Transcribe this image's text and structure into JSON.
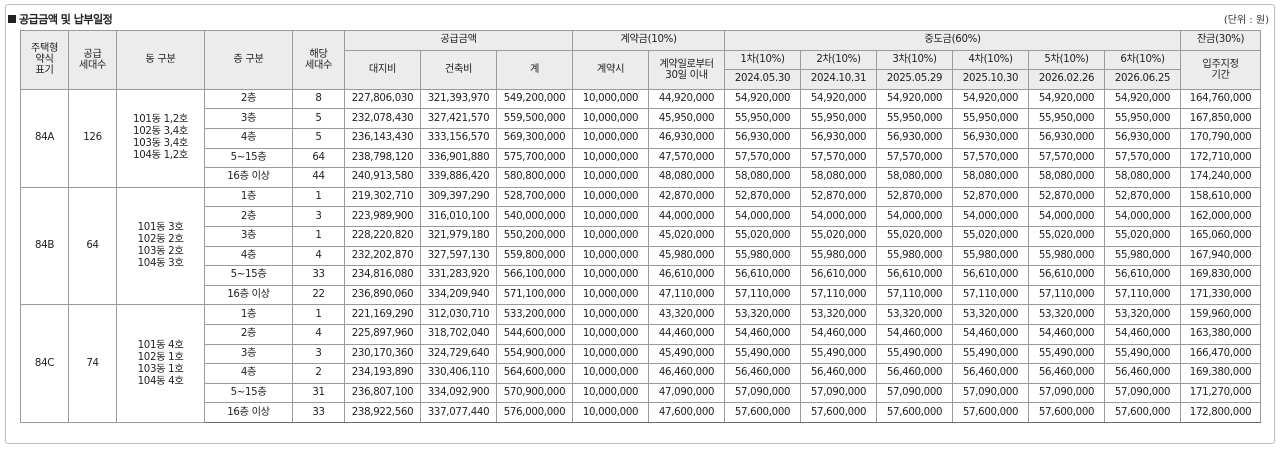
{
  "title": "공급금액 및 납부일정",
  "unit": "(단위 : 원)",
  "header": {
    "type_label": "주택형\n약식\n표기",
    "supply_units_label": "공급\n세대수",
    "dong_label": "동 구분",
    "floor_label": "층 구분",
    "units_label": "해당\n세대수",
    "supply_amount_label": "공급금액",
    "land_label": "대지비",
    "building_label": "건축비",
    "total_label": "계",
    "deposit_label": "계약금(10%)",
    "at_contract_label": "계약시",
    "within30_label": "계약일로부터\n30일 이내",
    "middle_label": "중도금(60%)",
    "balance_label": "잔금(30%)",
    "movein_label": "입주지정\n기간",
    "installments": [
      {
        "name": "1차(10%)",
        "date": "2024.05.30"
      },
      {
        "name": "2차(10%)",
        "date": "2024.10.31"
      },
      {
        "name": "3차(10%)",
        "date": "2025.05.29"
      },
      {
        "name": "4차(10%)",
        "date": "2025.10.30"
      },
      {
        "name": "5차(10%)",
        "date": "2026.02.26"
      },
      {
        "name": "6차(10%)",
        "date": "2026.06.25"
      }
    ]
  },
  "groups": [
    {
      "type": "84A",
      "supply_units": "126",
      "dongs": "101동 1,2호\n102동 3,4호\n103동 3,4호\n104동 1,2호",
      "rows": [
        {
          "floor": "2층",
          "units": "8",
          "land": "227,806,030",
          "building": "321,393,970",
          "total": "549,200,000",
          "at_contract": "10,000,000",
          "within30": "44,920,000",
          "middle": [
            "54,920,000",
            "54,920,000",
            "54,920,000",
            "54,920,000",
            "54,920,000",
            "54,920,000"
          ],
          "balance": "164,760,000"
        },
        {
          "floor": "3층",
          "units": "5",
          "land": "232,078,430",
          "building": "327,421,570",
          "total": "559,500,000",
          "at_contract": "10,000,000",
          "within30": "45,950,000",
          "middle": [
            "55,950,000",
            "55,950,000",
            "55,950,000",
            "55,950,000",
            "55,950,000",
            "55,950,000"
          ],
          "balance": "167,850,000"
        },
        {
          "floor": "4층",
          "units": "5",
          "land": "236,143,430",
          "building": "333,156,570",
          "total": "569,300,000",
          "at_contract": "10,000,000",
          "within30": "46,930,000",
          "middle": [
            "56,930,000",
            "56,930,000",
            "56,930,000",
            "56,930,000",
            "56,930,000",
            "56,930,000"
          ],
          "balance": "170,790,000"
        },
        {
          "floor": "5~15층",
          "units": "64",
          "land": "238,798,120",
          "building": "336,901,880",
          "total": "575,700,000",
          "at_contract": "10,000,000",
          "within30": "47,570,000",
          "middle": [
            "57,570,000",
            "57,570,000",
            "57,570,000",
            "57,570,000",
            "57,570,000",
            "57,570,000"
          ],
          "balance": "172,710,000"
        },
        {
          "floor": "16층 이상",
          "units": "44",
          "land": "240,913,580",
          "building": "339,886,420",
          "total": "580,800,000",
          "at_contract": "10,000,000",
          "within30": "48,080,000",
          "middle": [
            "58,080,000",
            "58,080,000",
            "58,080,000",
            "58,080,000",
            "58,080,000",
            "58,080,000"
          ],
          "balance": "174,240,000"
        }
      ]
    },
    {
      "type": "84B",
      "supply_units": "64",
      "dongs": "101동 3호\n102동 2호\n103동 2호\n104동 3호",
      "rows": [
        {
          "floor": "1층",
          "units": "1",
          "land": "219,302,710",
          "building": "309,397,290",
          "total": "528,700,000",
          "at_contract": "10,000,000",
          "within30": "42,870,000",
          "middle": [
            "52,870,000",
            "52,870,000",
            "52,870,000",
            "52,870,000",
            "52,870,000",
            "52,870,000"
          ],
          "balance": "158,610,000"
        },
        {
          "floor": "2층",
          "units": "3",
          "land": "223,989,900",
          "building": "316,010,100",
          "total": "540,000,000",
          "at_contract": "10,000,000",
          "within30": "44,000,000",
          "middle": [
            "54,000,000",
            "54,000,000",
            "54,000,000",
            "54,000,000",
            "54,000,000",
            "54,000,000"
          ],
          "balance": "162,000,000"
        },
        {
          "floor": "3층",
          "units": "1",
          "land": "228,220,820",
          "building": "321,979,180",
          "total": "550,200,000",
          "at_contract": "10,000,000",
          "within30": "45,020,000",
          "middle": [
            "55,020,000",
            "55,020,000",
            "55,020,000",
            "55,020,000",
            "55,020,000",
            "55,020,000"
          ],
          "balance": "165,060,000"
        },
        {
          "floor": "4층",
          "units": "4",
          "land": "232,202,870",
          "building": "327,597,130",
          "total": "559,800,000",
          "at_contract": "10,000,000",
          "within30": "45,980,000",
          "middle": [
            "55,980,000",
            "55,980,000",
            "55,980,000",
            "55,980,000",
            "55,980,000",
            "55,980,000"
          ],
          "balance": "167,940,000"
        },
        {
          "floor": "5~15층",
          "units": "33",
          "land": "234,816,080",
          "building": "331,283,920",
          "total": "566,100,000",
          "at_contract": "10,000,000",
          "within30": "46,610,000",
          "middle": [
            "56,610,000",
            "56,610,000",
            "56,610,000",
            "56,610,000",
            "56,610,000",
            "56,610,000"
          ],
          "balance": "169,830,000"
        },
        {
          "floor": "16층 이상",
          "units": "22",
          "land": "236,890,060",
          "building": "334,209,940",
          "total": "571,100,000",
          "at_contract": "10,000,000",
          "within30": "47,110,000",
          "middle": [
            "57,110,000",
            "57,110,000",
            "57,110,000",
            "57,110,000",
            "57,110,000",
            "57,110,000"
          ],
          "balance": "171,330,000"
        }
      ]
    },
    {
      "type": "84C",
      "supply_units": "74",
      "dongs": "101동 4호\n102동 1호\n103동 1호\n104동 4호",
      "rows": [
        {
          "floor": "1층",
          "units": "1",
          "land": "221,169,290",
          "building": "312,030,710",
          "total": "533,200,000",
          "at_contract": "10,000,000",
          "within30": "43,320,000",
          "middle": [
            "53,320,000",
            "53,320,000",
            "53,320,000",
            "53,320,000",
            "53,320,000",
            "53,320,000"
          ],
          "balance": "159,960,000"
        },
        {
          "floor": "2층",
          "units": "4",
          "land": "225,897,960",
          "building": "318,702,040",
          "total": "544,600,000",
          "at_contract": "10,000,000",
          "within30": "44,460,000",
          "middle": [
            "54,460,000",
            "54,460,000",
            "54,460,000",
            "54,460,000",
            "54,460,000",
            "54,460,000"
          ],
          "balance": "163,380,000"
        },
        {
          "floor": "3층",
          "units": "3",
          "land": "230,170,360",
          "building": "324,729,640",
          "total": "554,900,000",
          "at_contract": "10,000,000",
          "within30": "45,490,000",
          "middle": [
            "55,490,000",
            "55,490,000",
            "55,490,000",
            "55,490,000",
            "55,490,000",
            "55,490,000"
          ],
          "balance": "166,470,000"
        },
        {
          "floor": "4층",
          "units": "2",
          "land": "234,193,890",
          "building": "330,406,110",
          "total": "564,600,000",
          "at_contract": "10,000,000",
          "within30": "46,460,000",
          "middle": [
            "56,460,000",
            "56,460,000",
            "56,460,000",
            "56,460,000",
            "56,460,000",
            "56,460,000"
          ],
          "balance": "169,380,000"
        },
        {
          "floor": "5~15층",
          "units": "31",
          "land": "236,807,100",
          "building": "334,092,900",
          "total": "570,900,000",
          "at_contract": "10,000,000",
          "within30": "47,090,000",
          "middle": [
            "57,090,000",
            "57,090,000",
            "57,090,000",
            "57,090,000",
            "57,090,000",
            "57,090,000"
          ],
          "balance": "171,270,000"
        },
        {
          "floor": "16층 이상",
          "units": "33",
          "land": "238,922,560",
          "building": "337,077,440",
          "total": "576,000,000",
          "at_contract": "10,000,000",
          "within30": "47,600,000",
          "middle": [
            "57,600,000",
            "57,600,000",
            "57,600,000",
            "57,600,000",
            "57,600,000",
            "57,600,000"
          ],
          "balance": "172,800,000"
        }
      ]
    }
  ]
}
